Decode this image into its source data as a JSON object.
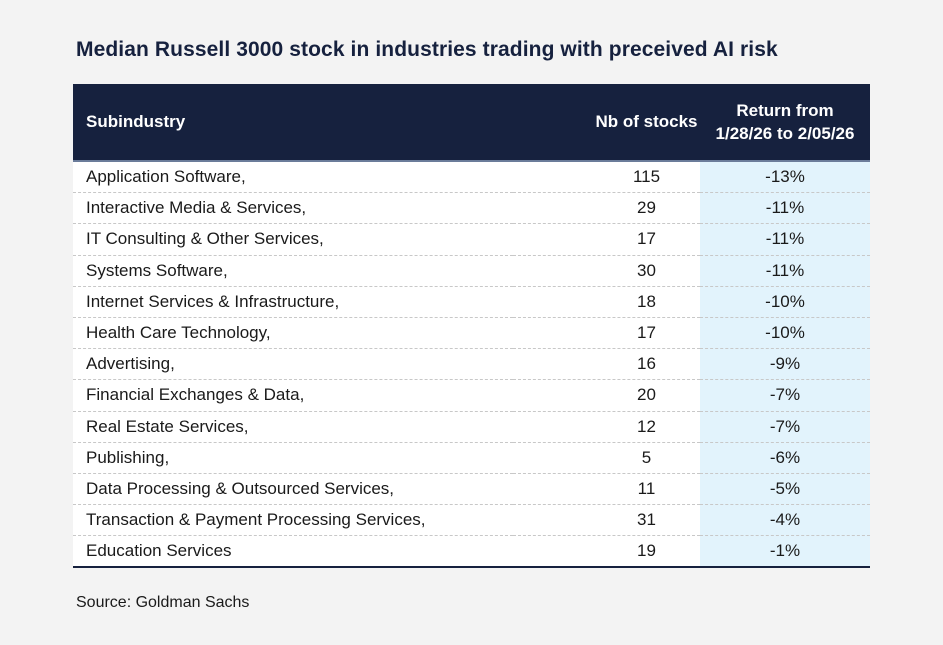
{
  "title": "Median Russell 3000 stock in industries trading with preceived AI risk",
  "source": "Source: Goldman Sachs",
  "colors": {
    "header_bg": "#16213e",
    "return_col_bg": "#e2f3fc"
  },
  "chart_data": {
    "type": "table",
    "title": "Median Russell 3000 stock in industries trading with preceived AI risk",
    "columns": [
      "Subindustry",
      "Nb of stocks",
      "Return from 1/28/26 to 2/05/26"
    ],
    "header_return_line1": "Return from",
    "header_return_line2": "1/28/26 to 2/05/26",
    "rows": [
      {
        "subindustry": "Application Software,",
        "nb": "115",
        "ret": "-13%"
      },
      {
        "subindustry": "Interactive Media & Services,",
        "nb": "29",
        "ret": "-11%"
      },
      {
        "subindustry": "IT Consulting & Other Services,",
        "nb": "17",
        "ret": "-11%"
      },
      {
        "subindustry": "Systems Software,",
        "nb": "30",
        "ret": "-11%"
      },
      {
        "subindustry": "Internet Services & Infrastructure,",
        "nb": "18",
        "ret": "-10%"
      },
      {
        "subindustry": "Health Care Technology,",
        "nb": "17",
        "ret": "-10%"
      },
      {
        "subindustry": "Advertising,",
        "nb": "16",
        "ret": "-9%"
      },
      {
        "subindustry": "Financial Exchanges & Data,",
        "nb": "20",
        "ret": "-7%"
      },
      {
        "subindustry": "Real Estate Services,",
        "nb": "12",
        "ret": "-7%"
      },
      {
        "subindustry": "Publishing,",
        "nb": "5",
        "ret": "-6%"
      },
      {
        "subindustry": "Data Processing & Outsourced Services,",
        "nb": "11",
        "ret": "-5%"
      },
      {
        "subindustry": "Transaction & Payment Processing Services,",
        "nb": "31",
        "ret": "-4%"
      },
      {
        "subindustry": "Education Services",
        "nb": "19",
        "ret": "-1%"
      }
    ]
  }
}
